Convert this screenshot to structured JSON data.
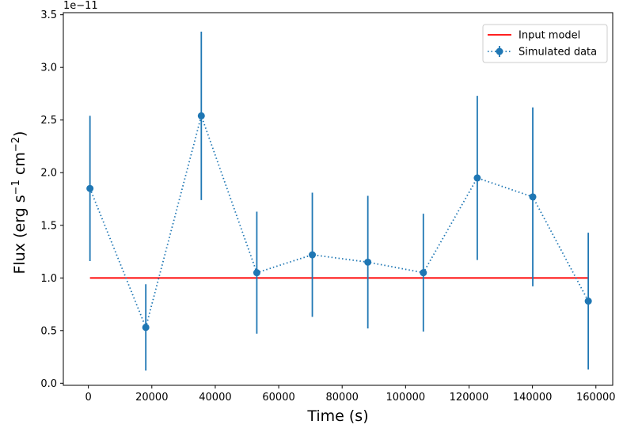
{
  "chart_data": {
    "type": "line",
    "title": "",
    "xlabel": "Time (s)",
    "ylabel_main": "Flux (erg s",
    "ylabel_sup1": "−1",
    "ylabel_mid": " cm",
    "ylabel_sup2": "−2",
    "ylabel_end": ")",
    "y_offset_text": "1e−11",
    "xlim": [
      -7900,
      165300
    ],
    "ylim": [
      -0.02,
      3.52
    ],
    "xticks": [
      0,
      20000,
      40000,
      60000,
      80000,
      100000,
      120000,
      140000,
      160000
    ],
    "xtick_labels": [
      "0",
      "20000",
      "40000",
      "60000",
      "80000",
      "100000",
      "120000",
      "140000",
      "160000"
    ],
    "yticks": [
      0.0,
      0.5,
      1.0,
      1.5,
      2.0,
      2.5,
      3.0,
      3.5
    ],
    "ytick_labels": [
      "0.0",
      "0.5",
      "1.0",
      "1.5",
      "2.0",
      "2.5",
      "3.0",
      "3.5"
    ],
    "legend_position": "top-right",
    "series": [
      {
        "name": "Input model",
        "kind": "line",
        "color": "#ff0000",
        "x": [
          500,
          157600
        ],
        "y": [
          1.0,
          1.0
        ]
      },
      {
        "name": "Simulated data",
        "kind": "errorbar",
        "color": "#1f77b4",
        "x": [
          500,
          18100,
          35600,
          53100,
          70600,
          88100,
          105600,
          122600,
          140100,
          157600
        ],
        "y": [
          1.85,
          0.53,
          2.54,
          1.05,
          1.22,
          1.15,
          1.05,
          1.95,
          1.77,
          0.78
        ],
        "yerr": [
          0.69,
          0.41,
          0.8,
          0.58,
          0.59,
          0.63,
          0.56,
          0.78,
          0.85,
          0.65
        ]
      }
    ]
  }
}
